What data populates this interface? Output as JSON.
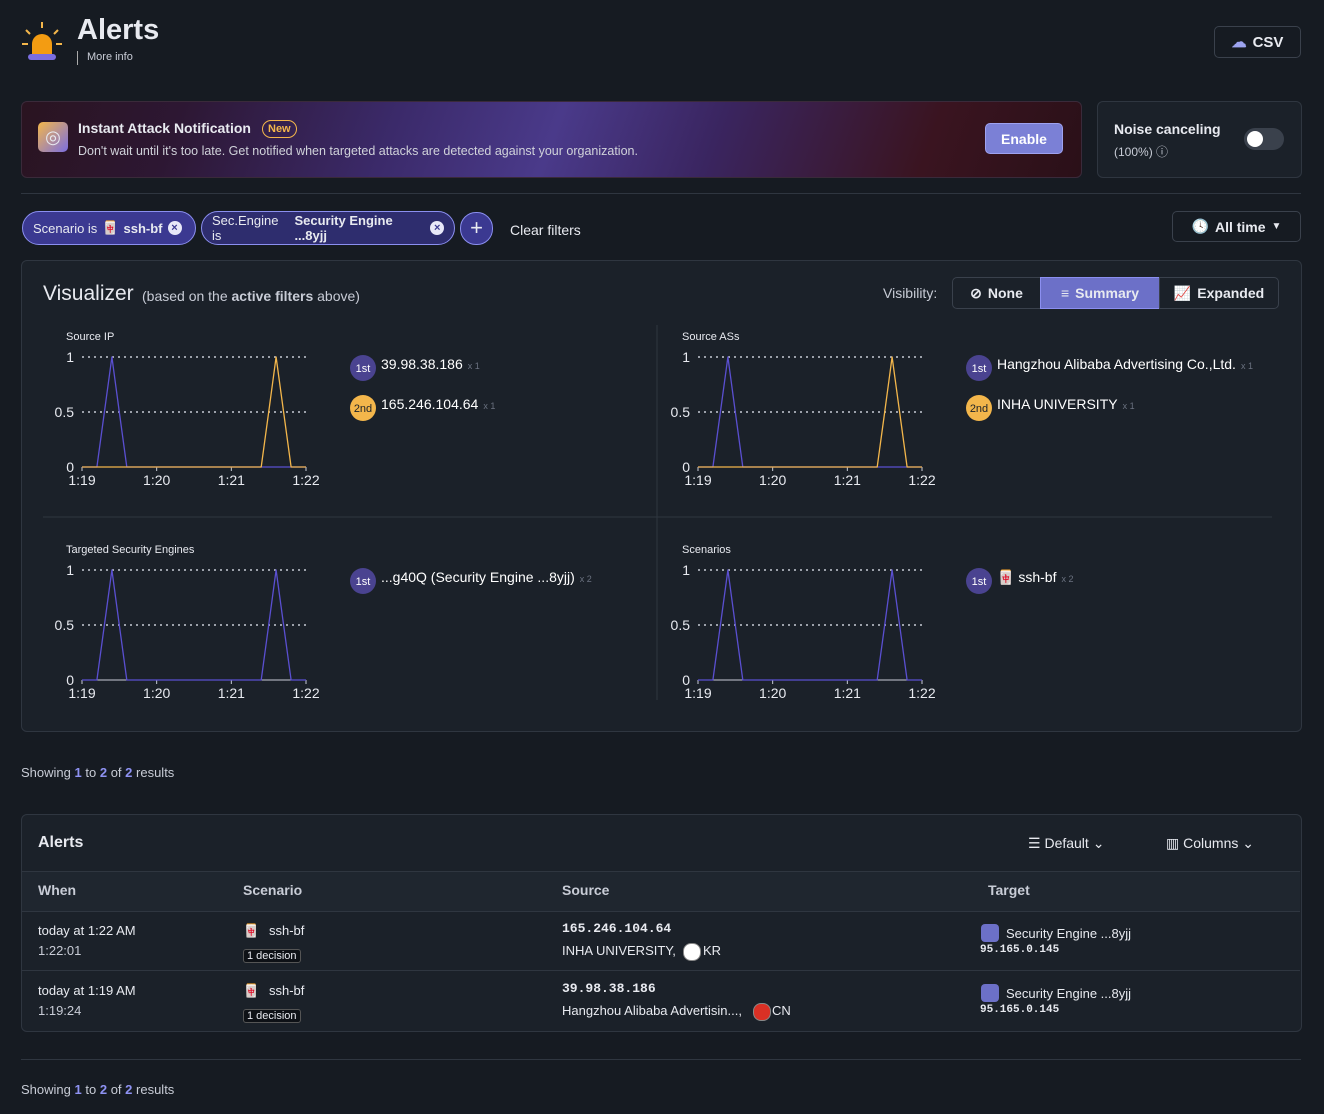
{
  "header": {
    "title": "Alerts",
    "more_info": "More info",
    "csv": "CSV"
  },
  "banner": {
    "title": "Instant Attack Notification",
    "badge": "New",
    "text": "Don't wait until it's too late. Get notified when targeted attacks are detected against your organization.",
    "button": "Enable"
  },
  "noise": {
    "title": "Noise canceling",
    "value": "(100%)"
  },
  "filters": {
    "chips": [
      {
        "prefix": "Scenario is",
        "value": "ssh-bf"
      },
      {
        "prefix": "Sec.Engine is",
        "value": "Security Engine ...8yjj"
      }
    ],
    "clear": "Clear filters",
    "time": "All time"
  },
  "visualizer": {
    "title": "Visualizer",
    "note_start": "(based on the",
    "note_bold": "active filters",
    "note_end": "above)",
    "visibility_label": "Visibility:",
    "options": [
      "None",
      "Summary",
      "Expanded"
    ],
    "panels": [
      {
        "title": "Source IP",
        "ylim": [
          0,
          1
        ],
        "yticks": [
          0,
          0.5,
          1
        ],
        "xlim": [
          0,
          3
        ],
        "xticks": [
          {
            "value": 0,
            "label": "1:19"
          },
          {
            "value": 1,
            "label": "1:20"
          },
          {
            "value": 2,
            "label": "1:21"
          },
          {
            "value": 3,
            "label": "1:22"
          }
        ],
        "series": [
          {
            "color": "#5a4fd0",
            "x": [
              0,
              0.2,
              0.3,
              0.4,
              0.5,
              0.6,
              3
            ],
            "values": [
              0,
              0,
              0.5,
              1,
              0.5,
              0,
              3e-09
            ]
          },
          {
            "color": "#f3b64b",
            "x": [
              0,
              2.4,
              2.5,
              2.6,
              2.7,
              2.8,
              3
            ],
            "values": [
              0,
              0,
              0.5,
              1,
              0.5,
              0,
              0
            ]
          }
        ],
        "legend": [
          {
            "rank": "1st",
            "name": "39.98.38.186",
            "count": "x 1"
          },
          {
            "rank": "2nd",
            "name": "165.246.104.64",
            "count": "x 1"
          }
        ]
      },
      {
        "title": "Source ASs",
        "ylim": [
          0,
          1
        ],
        "yticks": [
          0,
          0.5,
          1
        ],
        "xlim": [
          0,
          3
        ],
        "xticks": [
          {
            "value": 0,
            "label": "1:19"
          },
          {
            "value": 1,
            "label": "1:20"
          },
          {
            "value": 2,
            "label": "1:21"
          },
          {
            "value": 3,
            "label": "1:22"
          }
        ],
        "series": [
          {
            "color": "#5a4fd0",
            "x": [
              0,
              0.2,
              0.3,
              0.4,
              0.5,
              0.6,
              3
            ],
            "values": [
              0,
              0,
              0.5,
              1,
              0.5,
              0,
              0
            ]
          },
          {
            "color": "#f3b64b",
            "x": [
              0,
              2.4,
              2.5,
              2.6,
              2.7,
              2.8,
              3
            ],
            "values": [
              0,
              0,
              0.5,
              1,
              0.5,
              0,
              0
            ]
          }
        ],
        "legend": [
          {
            "rank": "1st",
            "name": "Hangzhou Alibaba Advertising Co.,Ltd.",
            "count": "x 1"
          },
          {
            "rank": "2nd",
            "name": "INHA UNIVERSITY",
            "count": "x 1"
          }
        ]
      },
      {
        "title": "Targeted Security Engines",
        "ylim": [
          0,
          1
        ],
        "yticks": [
          0,
          0.5,
          1
        ],
        "xlim": [
          0,
          3
        ],
        "xticks": [
          {
            "value": 0,
            "label": "1:19"
          },
          {
            "value": 1,
            "label": "1:20"
          },
          {
            "value": 2,
            "label": "1:21"
          },
          {
            "value": 3,
            "label": "1:22"
          }
        ],
        "series": [
          {
            "color": "#5a4fd0",
            "x": [
              0,
              0.2,
              0.3,
              0.4,
              0.5,
              0.6,
              2.4,
              2.5,
              2.6,
              2.7,
              2.8,
              3
            ],
            "values": [
              0,
              0,
              0.5,
              1,
              0.5,
              0,
              0,
              0.5,
              1,
              0.5,
              0,
              0
            ]
          }
        ],
        "legend": [
          {
            "rank": "1st",
            "name": "...g40Q (Security Engine ...8yjj)",
            "count": "x 2"
          }
        ]
      },
      {
        "title": "Scenarios",
        "ylim": [
          0,
          1
        ],
        "yticks": [
          0,
          0.5,
          1
        ],
        "xlim": [
          0,
          3
        ],
        "xticks": [
          {
            "value": 0,
            "label": "1:19"
          },
          {
            "value": 1,
            "label": "1:20"
          },
          {
            "value": 2,
            "label": "1:21"
          },
          {
            "value": 3,
            "label": "1:22"
          }
        ],
        "series": [
          {
            "color": "#5a4fd0",
            "x": [
              0,
              0.2,
              0.3,
              0.4,
              0.5,
              0.6,
              2.4,
              2.5,
              2.6,
              2.7,
              2.8,
              3
            ],
            "values": [
              0,
              0,
              0.5,
              1,
              0.5,
              0,
              0,
              0.5,
              1,
              0.5,
              0,
              0
            ]
          }
        ],
        "legend": [
          {
            "rank": "1st",
            "name": "ssh-bf",
            "count": "x 2"
          }
        ]
      }
    ]
  },
  "showing": {
    "word": "Showing",
    "from": "1",
    "to_word": "to",
    "to": "2",
    "of_word": "of",
    "total": "2",
    "results": "results"
  },
  "table": {
    "title": "Alerts",
    "view": "Default",
    "columns_button": "Columns",
    "headers": [
      "When",
      "Scenario",
      "Source",
      "Target"
    ],
    "rows": [
      {
        "when": "today at 1:22 AM",
        "time": "1:22:01",
        "scenario": "ssh-bf",
        "decision": "1 decision",
        "source_ip": "165.246.104.64",
        "source_as": "INHA UNIVERSITY,",
        "country": "KR",
        "target_name": "Security Engine ...8yjj",
        "target_ip": "95.165.0.145"
      },
      {
        "when": "today at 1:19 AM",
        "time": "1:19:24",
        "scenario": "ssh-bf",
        "decision": "1 decision",
        "source_ip": "39.98.38.186",
        "source_as": "Hangzhou Alibaba Advertisin...,",
        "country": "CN",
        "target_name": "Security Engine ...8yjj",
        "target_ip": "95.165.0.145"
      }
    ]
  }
}
